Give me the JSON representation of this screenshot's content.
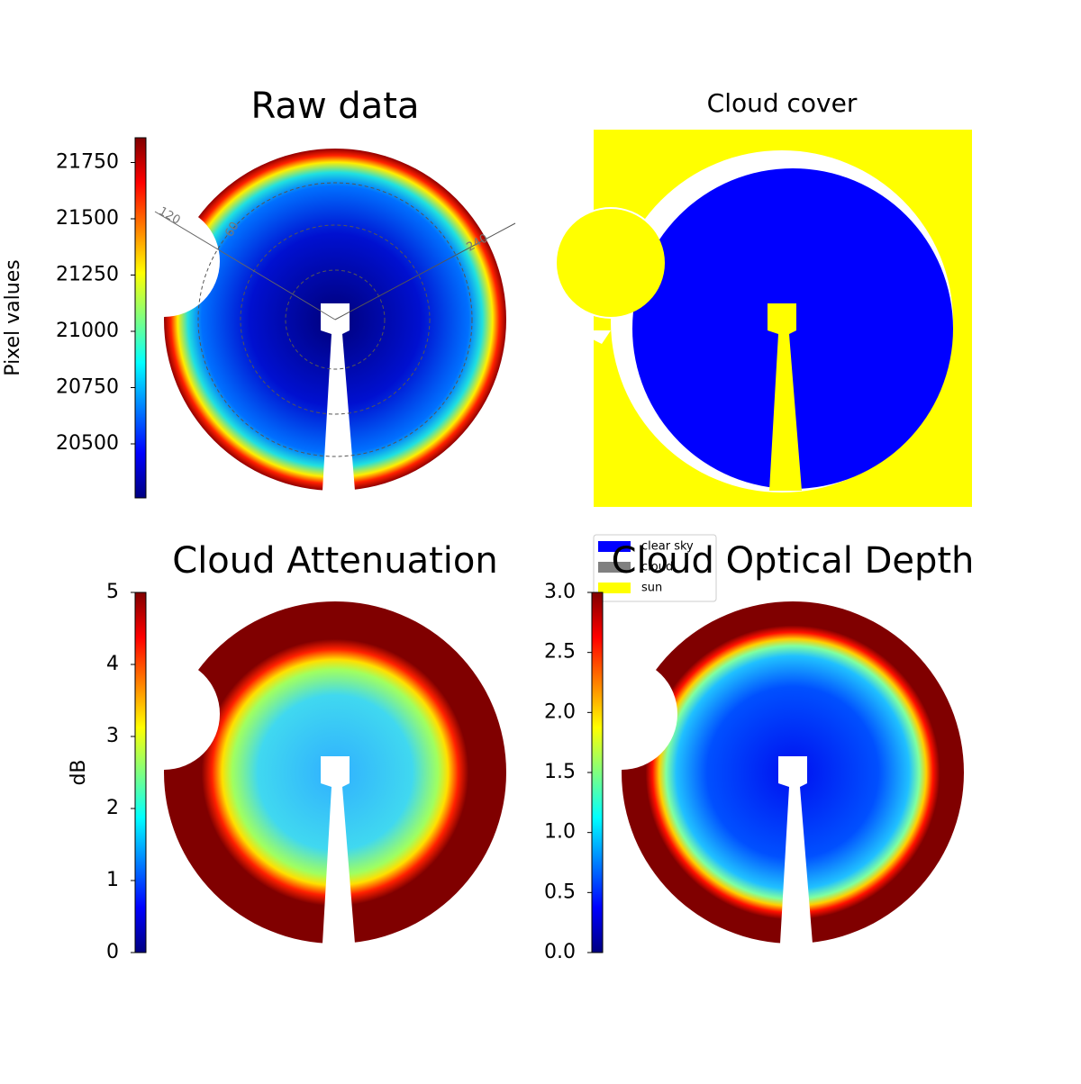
{
  "chart_data": [
    {
      "type": "heatmap",
      "title": "Raw data",
      "ylabel": "Pixel values",
      "ylim": [
        20260,
        21860
      ],
      "yticks": [
        20500,
        20750,
        21000,
        21250,
        21500,
        21750
      ],
      "annotations": [
        "120",
        "60",
        "240"
      ]
    },
    {
      "type": "mask",
      "title": "Cloud cover",
      "legend": [
        {
          "name": "clear sky",
          "color": "#0000ff"
        },
        {
          "name": "cloud",
          "color": "#808080"
        },
        {
          "name": "sun",
          "color": "#ffff00"
        }
      ]
    },
    {
      "type": "heatmap",
      "title": "Cloud Attenuation",
      "ylabel": "dB",
      "ylim": [
        0,
        5
      ],
      "yticks": [
        0,
        1,
        2,
        3,
        4,
        5
      ]
    },
    {
      "type": "heatmap",
      "title": "Cloud Optical Depth",
      "ylim": [
        0,
        3
      ],
      "yticks": [
        {
          "value": 0,
          "label": "0.0"
        },
        0.5,
        {
          "value": 1,
          "label": "1.0"
        },
        1.5,
        {
          "value": 2,
          "label": "2.0"
        },
        2.5,
        {
          "value": 3,
          "label": "3.0"
        }
      ]
    }
  ]
}
